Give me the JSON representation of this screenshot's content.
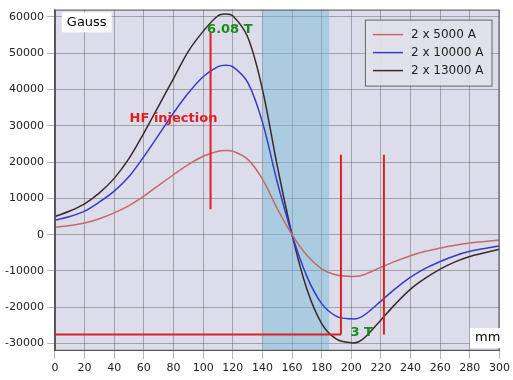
{
  "chart_data": {
    "type": "line",
    "x": [
      0,
      10,
      20,
      30,
      40,
      50,
      60,
      70,
      80,
      90,
      100,
      110,
      115,
      120,
      130,
      140,
      150,
      160,
      170,
      180,
      190,
      200,
      205,
      210,
      220,
      230,
      240,
      250,
      260,
      270,
      280,
      290,
      300
    ],
    "series": [
      {
        "name": "2 x 5000 A",
        "color": "#c46a6a",
        "values": [
          2000,
          2500,
          3200,
          4400,
          6000,
          8000,
          10600,
          13600,
          16500,
          19300,
          21600,
          23000,
          23200,
          23000,
          20800,
          15300,
          7200,
          0,
          -5700,
          -9400,
          -11100,
          -11500,
          -11400,
          -10800,
          -9000,
          -7300,
          -5800,
          -4600,
          -3700,
          -2900,
          -2300,
          -1900,
          -1500
        ]
      },
      {
        "name": "2 x 10000 A",
        "color": "#3a3ac8",
        "values": [
          4000,
          5000,
          6500,
          9000,
          12000,
          16000,
          21500,
          27500,
          33500,
          39000,
          43500,
          46300,
          46700,
          46300,
          42000,
          31000,
          14500,
          0,
          -11500,
          -19000,
          -22500,
          -23200,
          -23000,
          -21800,
          -18300,
          -14800,
          -11700,
          -9300,
          -7400,
          -5800,
          -4600,
          -3800,
          -3100
        ]
      },
      {
        "name": "2 x 13000 A",
        "color": "#3a2a2a",
        "values": [
          5000,
          6500,
          8500,
          11500,
          15500,
          21000,
          28000,
          35500,
          43000,
          50500,
          56000,
          60300,
          60800,
          60300,
          54500,
          40000,
          19000,
          0,
          -15000,
          -24500,
          -28800,
          -29800,
          -29500,
          -28000,
          -23500,
          -19000,
          -15000,
          -12000,
          -9500,
          -7500,
          -6000,
          -5000,
          -4000
        ]
      }
    ],
    "xlim": [
      0,
      300
    ],
    "xticks": [
      0,
      20,
      40,
      60,
      80,
      100,
      120,
      140,
      160,
      180,
      200,
      220,
      240,
      260,
      280,
      300
    ],
    "ylim": [
      -32000,
      62000
    ],
    "yticks": [
      -30000,
      -20000,
      -10000,
      0,
      10000,
      20000,
      30000,
      40000,
      50000,
      60000
    ],
    "grid": true,
    "legend": "upper right",
    "annotations": [
      {
        "text": "Gauss",
        "x": 8,
        "y": 58500,
        "color": "#000000"
      },
      {
        "text": "mm",
        "x": 292,
        "y": -28500,
        "color": "#000000"
      },
      {
        "text": "6.08 T",
        "x": 118,
        "y": 56500,
        "color": "#1a8a1a"
      },
      {
        "text": "HF injection",
        "x": 80,
        "y": 32000,
        "color": "#e02020"
      },
      {
        "text": "3 T",
        "x": 207,
        "y": -27000,
        "color": "#1a8a1a"
      }
    ],
    "shaded_range": {
      "x": [
        140,
        185
      ],
      "color": "#6fb6d8"
    },
    "marker_lines": [
      {
        "x": [
          105,
          105
        ],
        "y": [
          7000,
          56000
        ],
        "color": "#e02020"
      },
      {
        "x": [
          0,
          193
        ],
        "y": [
          -27500,
          -27500
        ],
        "color": "#e02020"
      },
      {
        "x": [
          193,
          193
        ],
        "y": [
          -27500,
          22000
        ],
        "color": "#e02020"
      },
      {
        "x": [
          222,
          222
        ],
        "y": [
          -27500,
          22000
        ],
        "color": "#e02020"
      }
    ]
  }
}
